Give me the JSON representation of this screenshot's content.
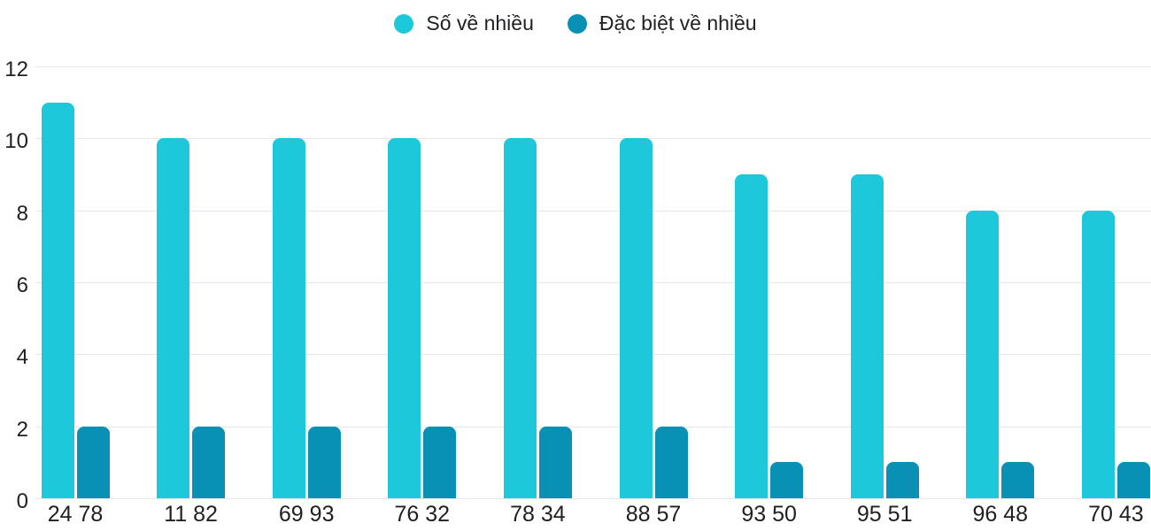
{
  "chart_data": {
    "type": "bar",
    "title": "",
    "xlabel": "",
    "ylabel": "",
    "categories": [
      "24 78",
      "11 82",
      "69 93",
      "76 32",
      "78 34",
      "88 57",
      "93 50",
      "95 51",
      "96 48",
      "70 43"
    ],
    "series": [
      {
        "name": "Số về nhiều",
        "color": "#1dc8da",
        "values": [
          11,
          10,
          10,
          10,
          10,
          10,
          9,
          9,
          8,
          8
        ]
      },
      {
        "name": "Đặc biệt về nhiều",
        "color": "#0891b4",
        "values": [
          2,
          2,
          2,
          2,
          2,
          2,
          1,
          1,
          1,
          1
        ]
      }
    ],
    "ylim": [
      0,
      12
    ],
    "yticks": [
      0,
      2,
      4,
      6,
      8,
      10,
      12
    ],
    "grid": true,
    "legend_position": "top"
  },
  "colors": {
    "series1": "#1dc8da",
    "series2": "#0891b4",
    "gridline": "#e7e7e7",
    "text": "#202124",
    "background": "#ffffff"
  }
}
